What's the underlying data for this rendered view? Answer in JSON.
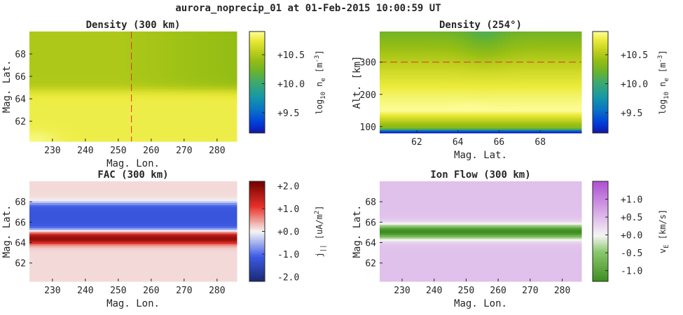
{
  "figure_title": "aurora_noprecip_01 at 01-Feb-2015 10:00:59 UT",
  "chart_data": [
    {
      "type": "heatmap",
      "title": "Density (300 km)",
      "xlabel": "Mag. Lon.",
      "ylabel": "Mag. Lat.",
      "xlim": [
        223,
        286
      ],
      "ylim": [
        60.2,
        70
      ],
      "xticks": [
        230,
        240,
        250,
        260,
        270,
        280
      ],
      "yticks": [
        62,
        64,
        66,
        68
      ],
      "reference_line": {
        "orientation": "vertical",
        "value": 254,
        "style": "dashed",
        "color": "#e03030"
      },
      "colormap": "parula",
      "colorbar": {
        "label_base": "log",
        "label_sub": "10",
        "label_mid": " n",
        "label_sub2": "e",
        "label_unit": " [m",
        "label_sup": "-3",
        "label_end": "]",
        "ticks": [
          9.5,
          10.0,
          10.5
        ],
        "tick_labels": [
          "+9.5",
          "+10.0",
          "+10.5"
        ],
        "range": [
          9.15,
          10.9
        ]
      },
      "field": {
        "kind": "density_slice",
        "low_lat_value": 10.78,
        "high_lat_value": 10.5,
        "boundary_lat": 64.8,
        "note_values_are_log10_m-3": true
      }
    },
    {
      "type": "heatmap",
      "title": "Density (254°)",
      "xlabel": "Mag. Lat.",
      "ylabel": "Alt. [km]",
      "xlim": [
        60.2,
        70
      ],
      "ylim": [
        80,
        395
      ],
      "xticks": [
        62,
        64,
        66,
        68
      ],
      "yticks": [
        100,
        200,
        300
      ],
      "reference_line": {
        "orientation": "horizontal",
        "value": 300,
        "style": "dashed",
        "color": "#e03030"
      },
      "colormap": "parula",
      "colorbar": {
        "label_base": "log",
        "label_sub": "10",
        "label_mid": " n",
        "label_sub2": "e",
        "label_unit": " [m",
        "label_sup": "-3",
        "label_end": "]",
        "ticks": [
          9.5,
          10.0,
          10.5
        ],
        "tick_labels": [
          "+9.5",
          "+10.0",
          "+10.5"
        ],
        "range": [
          9.15,
          10.9
        ]
      },
      "field": {
        "kind": "altitude_profile",
        "peak_alt": 150,
        "peak_value": 10.9,
        "top_value": 10.25,
        "bottom_value": 9.2
      }
    },
    {
      "type": "heatmap",
      "title": "FAC (300 km)",
      "xlabel": "Mag. Lon.",
      "ylabel": "Mag. Lat.",
      "xlim": [
        223,
        286
      ],
      "ylim": [
        60.2,
        70
      ],
      "xticks": [
        230,
        240,
        250,
        260,
        270,
        280
      ],
      "yticks": [
        62,
        64,
        66,
        68
      ],
      "colormap": "red-white-blue",
      "colorbar": {
        "label_base": "j",
        "label_sub": "||",
        "label_mid": "",
        "label_sub2": "",
        "label_unit": " [uA/m",
        "label_sup": "2",
        "label_end": "]",
        "ticks": [
          -2.0,
          -1.0,
          0.0,
          1.0,
          2.0
        ],
        "tick_labels": [
          "-2.0",
          "-1.0",
          "+0.0",
          "+1.0",
          "+2.0"
        ],
        "range": [
          -2.2,
          2.2
        ]
      },
      "field": {
        "kind": "latitude_bands",
        "background": 0.15,
        "bands": [
          {
            "from": 64.0,
            "to": 64.9,
            "value": 2.2,
            "edge": 0.18
          },
          {
            "from": 65.3,
            "to": 67.9,
            "value": -1.2,
            "edge": 0.15
          }
        ]
      }
    },
    {
      "type": "heatmap",
      "title": "Ion Flow (300 km)",
      "xlabel": "Mag. Lon.",
      "ylabel": "Mag. Lat.",
      "xlim": [
        223,
        286
      ],
      "ylim": [
        60.2,
        70
      ],
      "xticks": [
        230,
        240,
        250,
        260,
        270,
        280
      ],
      "yticks": [
        62,
        64,
        66,
        68
      ],
      "colormap": "purple-white-green",
      "colorbar": {
        "label_base": "v",
        "label_sub": "E",
        "label_mid": "",
        "label_sub2": "",
        "label_unit": " [km/s]",
        "label_sup": "",
        "label_end": "",
        "ticks": [
          -1.0,
          -0.5,
          0.0,
          0.5,
          1.0
        ],
        "tick_labels": [
          "-1.0",
          "-0.5",
          "+0.0",
          "+0.5",
          "+1.0"
        ],
        "range": [
          -1.3,
          1.5
        ]
      },
      "field": {
        "kind": "flow_jet",
        "background": 0.45,
        "jet_center": 65.1,
        "jet_halfwidth": 0.75,
        "jet_value": -1.3
      }
    }
  ]
}
